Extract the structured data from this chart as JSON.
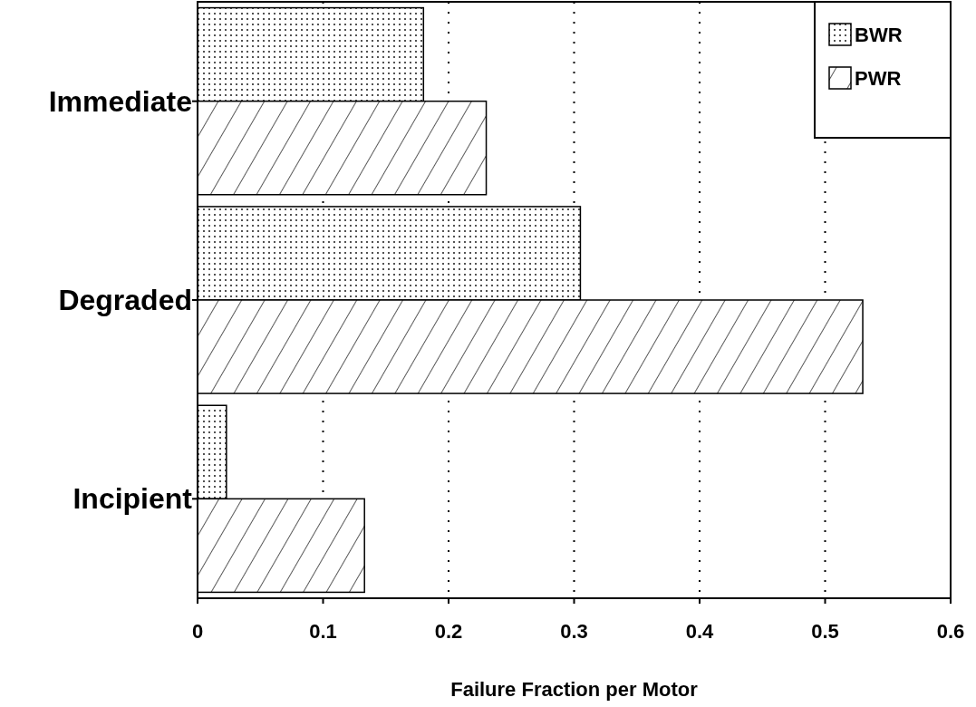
{
  "chart_data": {
    "type": "bar",
    "orientation": "horizontal",
    "xlabel": "Failure Fraction per Motor",
    "categories": [
      "Immediate",
      "Degraded",
      "Incipient"
    ],
    "series": [
      {
        "name": "BWR",
        "color": "#000000",
        "values": [
          0.18,
          0.305,
          0.023
        ]
      },
      {
        "name": "PWR",
        "color": "#000000",
        "values": [
          0.23,
          0.53,
          0.133
        ]
      }
    ],
    "xlim": [
      0,
      0.6
    ],
    "xticks": [
      0,
      0.1,
      0.2,
      0.3,
      0.4,
      0.5,
      0.6
    ],
    "grid": "x",
    "legend": "top right"
  }
}
